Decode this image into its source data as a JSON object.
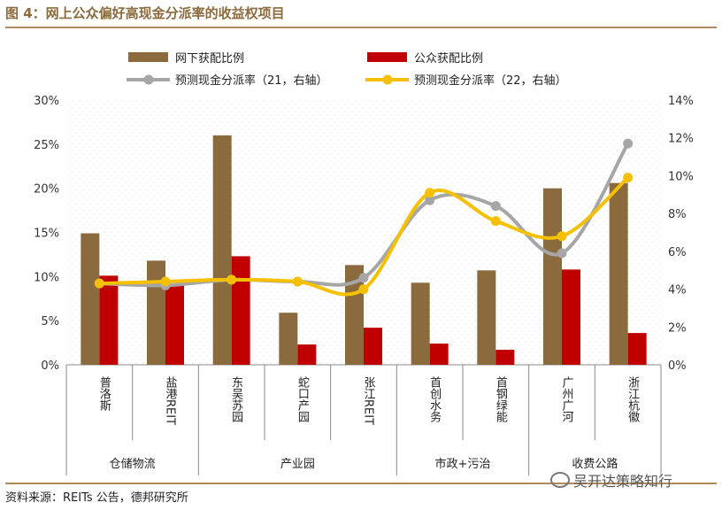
{
  "figure": {
    "title": "图 4：网上公众偏好高现金分派率的收益权项目",
    "source": "资料来源：REITs 公告，德邦研究所",
    "watermark": "吴开达策略知行"
  },
  "chart_data": {
    "type": "bar",
    "categories": [
      "普洛斯",
      "盐港REIT",
      "东吴苏园",
      "蛇口产园",
      "张江REIT",
      "首创水务",
      "首钢绿能",
      "广州广河",
      "浙江杭徽"
    ],
    "groups": [
      {
        "label": "仓储物流",
        "categories": [
          "普洛斯",
          "盐港REIT"
        ]
      },
      {
        "label": "产业园",
        "categories": [
          "东吴苏园",
          "蛇口产园",
          "张江REIT"
        ]
      },
      {
        "label": "市政+污治",
        "categories": [
          "首创水务",
          "首钢绿能"
        ]
      },
      {
        "label": "收费公路",
        "categories": [
          "广州广河",
          "浙江杭徽"
        ]
      }
    ],
    "series": [
      {
        "name": "网下获配比例",
        "type": "bar",
        "axis": "left",
        "color": "#8b6a3d",
        "values": [
          14.9,
          11.8,
          26.0,
          5.9,
          11.3,
          9.3,
          10.7,
          20.0,
          20.6
        ]
      },
      {
        "name": "公众获配比例",
        "type": "bar",
        "axis": "left",
        "color": "#c00000",
        "values": [
          10.1,
          9.0,
          12.3,
          2.3,
          4.2,
          2.4,
          1.7,
          10.8,
          3.6
        ]
      },
      {
        "name": "预测现金分派率（21，右轴）",
        "type": "line",
        "axis": "right",
        "color": "#a6a6a6",
        "values": [
          4.3,
          4.2,
          4.5,
          4.4,
          4.6,
          8.7,
          8.4,
          5.9,
          11.7
        ]
      },
      {
        "name": "预测现金分派率（22，右轴）",
        "type": "line",
        "axis": "right",
        "color": "#f5c000",
        "values": [
          4.3,
          4.4,
          4.5,
          4.4,
          4.0,
          9.1,
          7.6,
          6.8,
          9.9
        ]
      }
    ],
    "y_left": {
      "min": 0,
      "max": 30,
      "step": 5,
      "ticks": [
        "0%",
        "5%",
        "10%",
        "15%",
        "20%",
        "25%",
        "30%"
      ]
    },
    "y_right": {
      "min": 0,
      "max": 14,
      "step": 2,
      "ticks": [
        "0%",
        "2%",
        "4%",
        "6%",
        "8%",
        "10%",
        "12%",
        "14%"
      ]
    },
    "legend_position": "top",
    "grid": false
  }
}
